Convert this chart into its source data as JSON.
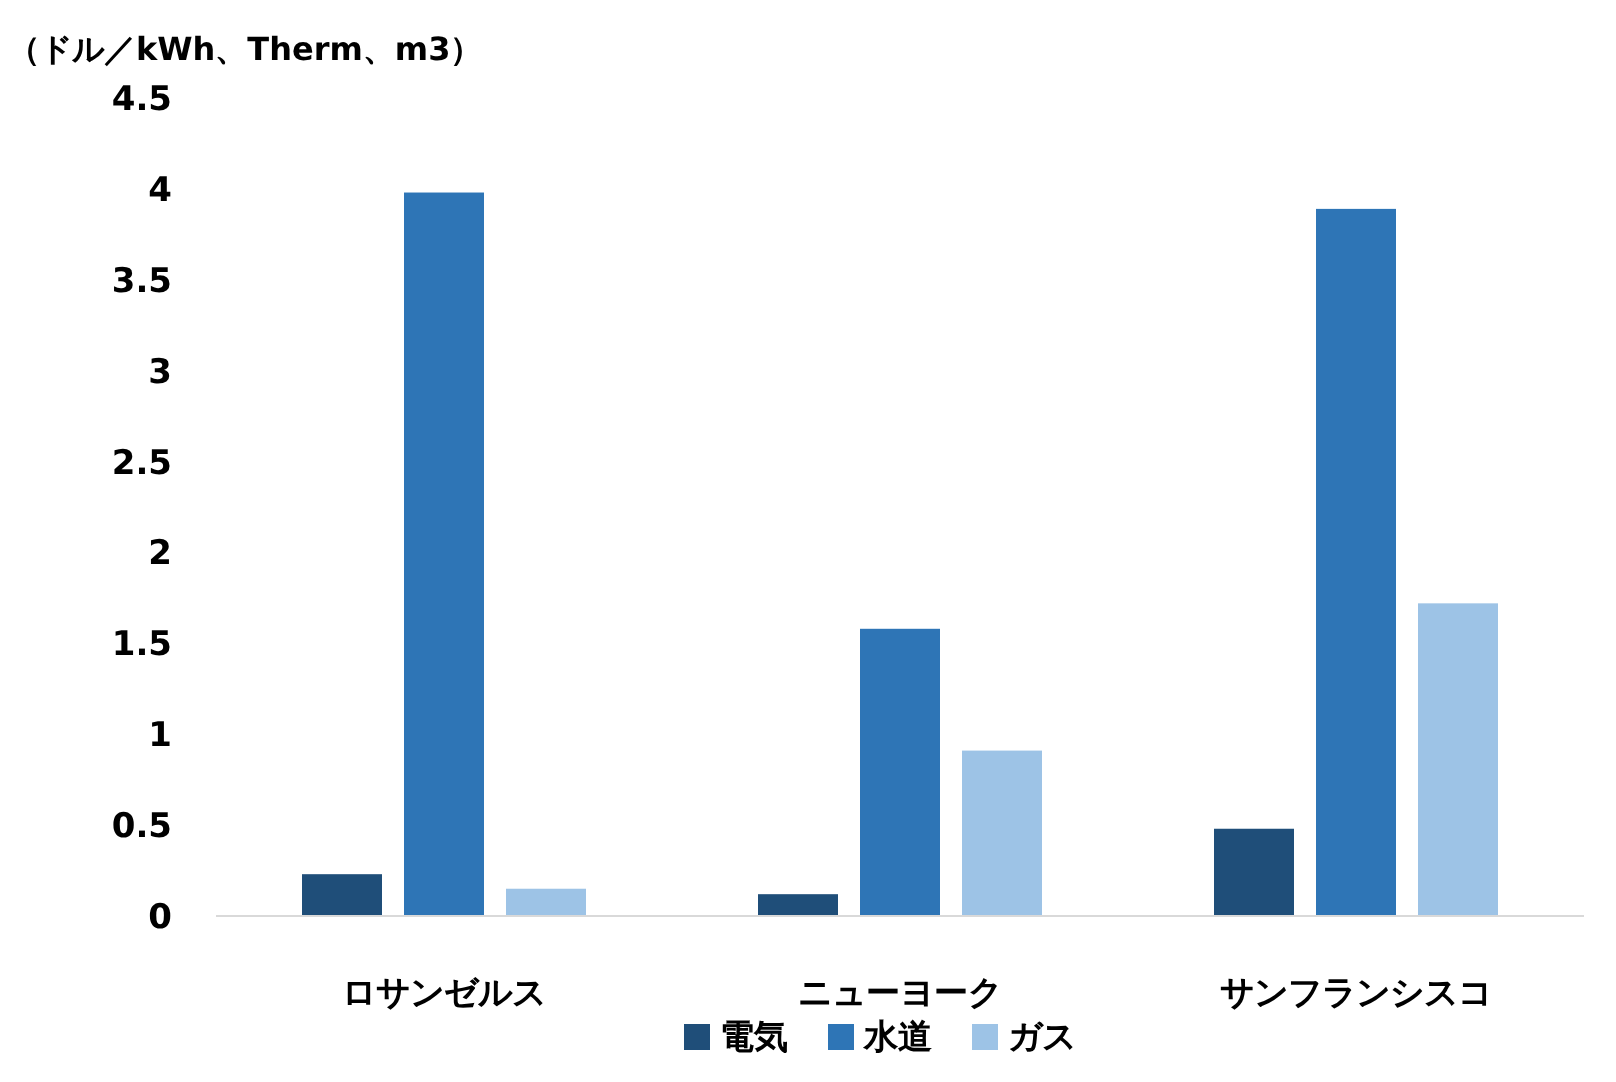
{
  "chart_data": {
    "type": "bar",
    "ylabel": "（ドル／kWh、Therm、m3）",
    "categories": [
      "ロサンゼルス",
      "ニューヨーク",
      "サンフランシスコ"
    ],
    "series": [
      {
        "name": "電気",
        "color": "#1f4e79",
        "values": [
          0.23,
          0.12,
          0.48
        ]
      },
      {
        "name": "水道",
        "color": "#2e75b6",
        "values": [
          3.98,
          1.58,
          3.89
        ]
      },
      {
        "name": "ガス",
        "color": "#9dc3e6",
        "values": [
          0.15,
          0.91,
          1.72
        ]
      }
    ],
    "ylim": [
      0,
      4.5
    ],
    "yticks": [
      0,
      0.5,
      1,
      1.5,
      2,
      2.5,
      3,
      3.5,
      4,
      4.5
    ],
    "grid": false,
    "legend": "bottom"
  }
}
